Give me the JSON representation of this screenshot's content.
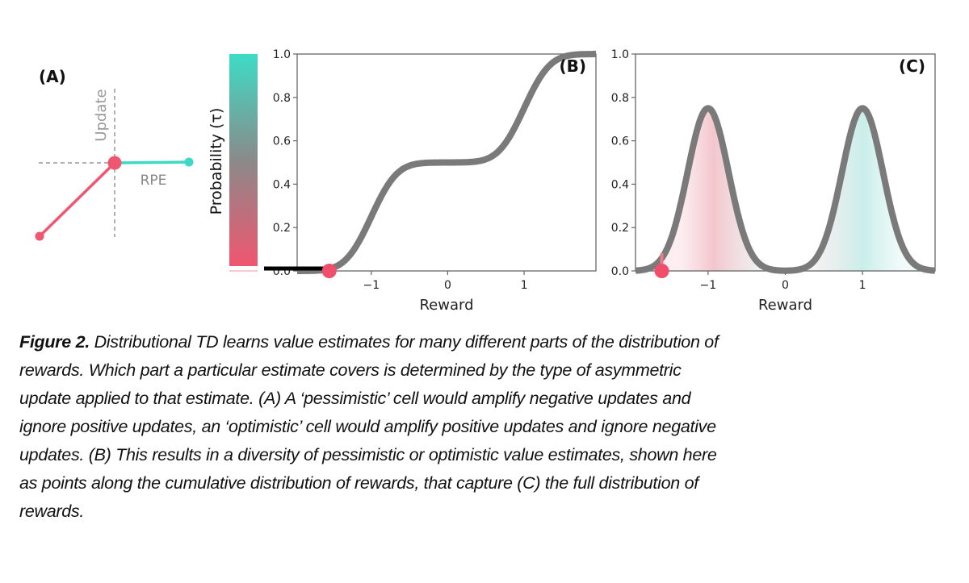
{
  "panel_a": {
    "label": "(A)",
    "y_label": "Update",
    "x_label": "RPE",
    "colors": {
      "pessimistic": "#ef566f",
      "optimistic": "#3dd9c4",
      "guide": "#999999"
    }
  },
  "colorbar": {
    "label": "Probability (τ)",
    "top_color": "#3ddcc6",
    "mid_color": "#8a8a8a",
    "bottom_color": "#f0566f"
  },
  "chart_data": [
    {
      "type": "line",
      "panel": "(B)",
      "description_label": "(B)",
      "title": "",
      "xlabel": "Reward",
      "ylabel": "Probability (τ)",
      "xlim": [
        -1.97,
        1.94
      ],
      "ylim": [
        0,
        1
      ],
      "xticks": [
        -1,
        0,
        1
      ],
      "xtick_labels": [
        "−1",
        "0",
        "1"
      ],
      "yticks": [
        0.0,
        0.2,
        0.4,
        0.6,
        0.8,
        1.0
      ],
      "ytick_labels": [
        "0.0",
        "0.2",
        "0.4",
        "0.6",
        "0.8",
        "1.0"
      ],
      "series": [
        {
          "name": "cumulative distribution",
          "kind": "mixture-cdf",
          "means": [
            -1,
            1
          ],
          "weights": [
            0.5,
            0.5
          ],
          "sd": 0.266,
          "color": "#7a7a7a"
        }
      ],
      "highlight_segment": {
        "x": [
          -1.97,
          -1.55
        ],
        "y": 0
      },
      "highlight_point": {
        "x": -1.55,
        "y": 0.0,
        "color": "#ef4f6a"
      }
    },
    {
      "type": "area",
      "panel": "(C)",
      "description_label": "(C)",
      "title": "",
      "xlabel": "Reward",
      "ylabel": "",
      "xlim": [
        -1.94,
        1.94
      ],
      "ylim": [
        0,
        1
      ],
      "xticks": [
        -1,
        0,
        1
      ],
      "xtick_labels": [
        "−1",
        "0",
        "1"
      ],
      "yticks": [
        0.0,
        0.2,
        0.4,
        0.6,
        0.8,
        1.0
      ],
      "ytick_labels": [
        "0.0",
        "0.2",
        "0.4",
        "0.6",
        "0.8",
        "1.0"
      ],
      "series": [
        {
          "name": "reward distribution",
          "kind": "mixture-pdf",
          "means": [
            -1,
            1
          ],
          "weights": [
            0.5,
            0.5
          ],
          "sd": 0.266,
          "peak": 0.75,
          "color": "#7a7a7a"
        }
      ],
      "highlight_point": {
        "x": -1.6,
        "y": 0.0,
        "color": "#ef4f6a"
      }
    }
  ],
  "caption": {
    "figure_label": "Figure 2.",
    "lines": [
      " Distributional TD learns value estimates for many different parts of the distribution of",
      "rewards. Which part a particular estimate covers is determined by the type of asymmetric",
      "update applied to that estimate. (A) A ‘pessimistic’ cell would amplify negative updates and",
      "ignore positive updates, an ‘optimistic’ cell would amplify positive updates and ignore negative",
      "updates. (B) This results in a diversity of pessimistic or optimistic value estimates, shown here",
      "as points along the cumulative distribution of rewards, that capture (C) the full distribution of",
      "rewards."
    ]
  }
}
